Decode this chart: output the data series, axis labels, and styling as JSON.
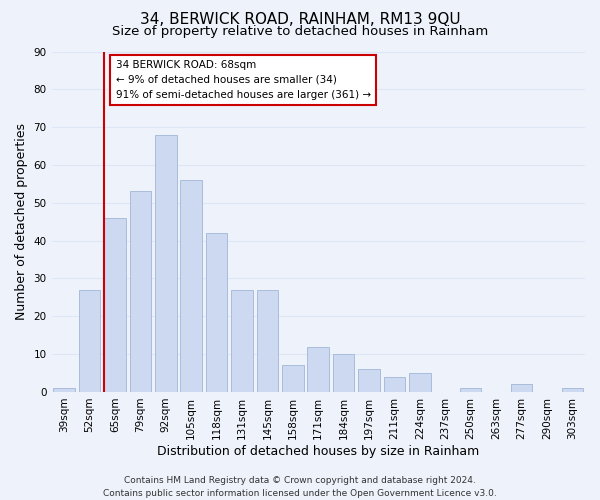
{
  "title": "34, BERWICK ROAD, RAINHAM, RM13 9QU",
  "subtitle": "Size of property relative to detached houses in Rainham",
  "xlabel": "Distribution of detached houses by size in Rainham",
  "ylabel": "Number of detached properties",
  "bar_color": "#ccd9f0",
  "bar_edgecolor": "#aabcdc",
  "bins": [
    "39sqm",
    "52sqm",
    "65sqm",
    "79sqm",
    "92sqm",
    "105sqm",
    "118sqm",
    "131sqm",
    "145sqm",
    "158sqm",
    "171sqm",
    "184sqm",
    "197sqm",
    "211sqm",
    "224sqm",
    "237sqm",
    "250sqm",
    "263sqm",
    "277sqm",
    "290sqm",
    "303sqm"
  ],
  "values": [
    1,
    27,
    46,
    53,
    68,
    56,
    42,
    27,
    27,
    7,
    12,
    10,
    6,
    4,
    5,
    0,
    1,
    0,
    2,
    0,
    1
  ],
  "ylim": [
    0,
    90
  ],
  "yticks": [
    0,
    10,
    20,
    30,
    40,
    50,
    60,
    70,
    80,
    90
  ],
  "vline_x_index": 2,
  "vline_color": "#cc0000",
  "annotation_title": "34 BERWICK ROAD: 68sqm",
  "annotation_line1": "← 9% of detached houses are smaller (34)",
  "annotation_line2": "91% of semi-detached houses are larger (361) →",
  "annotation_box_color": "#ffffff",
  "annotation_box_edgecolor": "#cc0000",
  "footer_line1": "Contains HM Land Registry data © Crown copyright and database right 2024.",
  "footer_line2": "Contains public sector information licensed under the Open Government Licence v3.0.",
  "background_color": "#eef2fa",
  "grid_color": "#dde6f5",
  "title_fontsize": 11,
  "subtitle_fontsize": 9.5,
  "label_fontsize": 9,
  "tick_fontsize": 7.5,
  "footer_fontsize": 6.5,
  "annotation_fontsize": 7.5
}
